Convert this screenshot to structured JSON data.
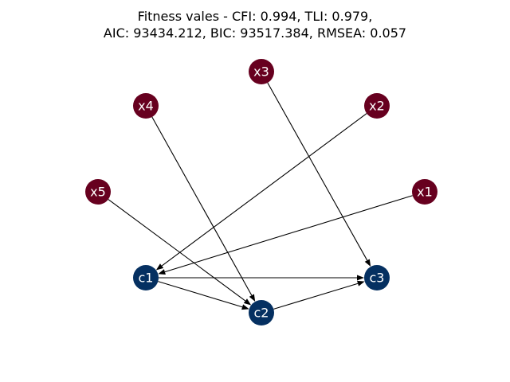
{
  "title": {
    "line1": "Fitness vales - CFI: 0.994, TLI: 0.979,",
    "line2": "AIC: 93434.212, BIC: 93517.384, RMSEA: 0.057"
  },
  "colors": {
    "exogenous": "#67001f",
    "endogenous": "#053061"
  },
  "nodes": [
    {
      "id": "x3",
      "label": "x3",
      "kind": "exogenous"
    },
    {
      "id": "x4",
      "label": "x4",
      "kind": "exogenous"
    },
    {
      "id": "x2",
      "label": "x2",
      "kind": "exogenous"
    },
    {
      "id": "x5",
      "label": "x5",
      "kind": "exogenous"
    },
    {
      "id": "x1",
      "label": "x1",
      "kind": "exogenous"
    },
    {
      "id": "c1",
      "label": "c1",
      "kind": "endogenous"
    },
    {
      "id": "c3",
      "label": "c3",
      "kind": "endogenous"
    },
    {
      "id": "c2",
      "label": "c2",
      "kind": "endogenous"
    }
  ],
  "edges": [
    {
      "from": "x3",
      "to": "c3"
    },
    {
      "from": "x4",
      "to": "c2"
    },
    {
      "from": "x2",
      "to": "c1"
    },
    {
      "from": "x5",
      "to": "c2"
    },
    {
      "from": "x1",
      "to": "c1"
    },
    {
      "from": "c1",
      "to": "c3"
    },
    {
      "from": "c1",
      "to": "c2"
    },
    {
      "from": "c2",
      "to": "c3"
    }
  ]
}
